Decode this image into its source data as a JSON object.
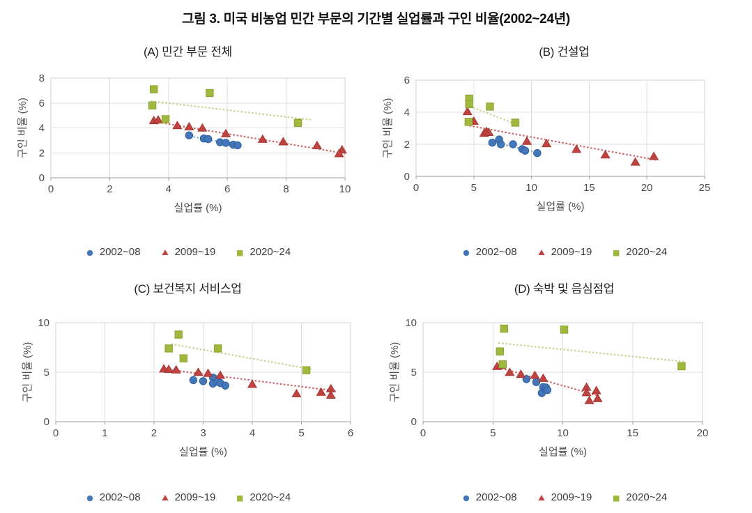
{
  "title": "그림 3. 미국 비농업 민간 부문의 기간별 실업률과 구인 비율(2002~24년)",
  "legend": {
    "items": [
      {
        "label": "2002~08",
        "shape": "circle",
        "color": "#4377b9"
      },
      {
        "label": "2009~19",
        "shape": "triangle",
        "color": "#bf4340"
      },
      {
        "label": "2020~24",
        "shape": "square",
        "color": "#9fb83e"
      }
    ]
  },
  "chart_data": [
    {
      "type": "scatter",
      "panel": "A",
      "subtitle": "(A) 민간 부문 전체",
      "xlabel": "실업률 (%)",
      "ylabel": "구인 비율 (%)",
      "xlim": [
        0,
        10
      ],
      "ylim": [
        0,
        8
      ],
      "xticks": [
        0,
        2,
        4,
        6,
        8,
        10
      ],
      "yticks": [
        0,
        2,
        4,
        6,
        8
      ],
      "grid": true,
      "series": [
        {
          "name": "2002~08",
          "shape": "circle",
          "color": "#4377b9",
          "edge": "#2f5f9e",
          "trend_color": "#85a9d6",
          "points": [
            [
              4.7,
              3.4
            ],
            [
              5.2,
              3.15
            ],
            [
              5.35,
              3.1
            ],
            [
              5.75,
              2.85
            ],
            [
              5.95,
              2.8
            ],
            [
              6.2,
              2.65
            ],
            [
              6.35,
              2.6
            ]
          ],
          "trend": [
            [
              4.6,
              3.4
            ],
            [
              6.55,
              2.5
            ]
          ]
        },
        {
          "name": "2009~19",
          "shape": "triangle",
          "color": "#bf4340",
          "edge": "#a53732",
          "trend_color": "#d16060",
          "points": [
            [
              3.5,
              4.6
            ],
            [
              3.65,
              4.65
            ],
            [
              4.3,
              4.2
            ],
            [
              4.7,
              4.1
            ],
            [
              5.15,
              4.0
            ],
            [
              5.95,
              3.55
            ],
            [
              7.2,
              3.1
            ],
            [
              7.9,
              2.9
            ],
            [
              9.05,
              2.6
            ],
            [
              9.9,
              2.25
            ],
            [
              9.8,
              1.95
            ]
          ],
          "trend": [
            [
              3.4,
              4.55
            ],
            [
              10.0,
              1.95
            ]
          ]
        },
        {
          "name": "2020~24",
          "shape": "square",
          "color": "#9fb83e",
          "edge": "#8ba32e",
          "trend_color": "#c9d08f",
          "points": [
            [
              3.5,
              7.1
            ],
            [
              3.45,
              5.8
            ],
            [
              3.9,
              4.7
            ],
            [
              5.4,
              6.8
            ],
            [
              8.4,
              4.4
            ]
          ],
          "trend": [
            [
              3.4,
              6.15
            ],
            [
              8.85,
              4.65
            ]
          ]
        }
      ]
    },
    {
      "type": "scatter",
      "panel": "B",
      "subtitle": "(B) 건설업",
      "xlabel": "실업률 (%)",
      "ylabel": "구인 비율 (%)",
      "xlim": [
        0,
        25
      ],
      "ylim": [
        0,
        6
      ],
      "xticks": [
        0,
        5,
        10,
        15,
        20,
        25
      ],
      "yticks": [
        0,
        2,
        4,
        6
      ],
      "grid": true,
      "series": [
        {
          "name": "2002~08",
          "shape": "circle",
          "color": "#4377b9",
          "edge": "#2f5f9e",
          "trend_color": "#85a9d6",
          "points": [
            [
              6.6,
              2.1
            ],
            [
              7.2,
              2.3
            ],
            [
              7.35,
              2.0
            ],
            [
              8.4,
              2.0
            ],
            [
              9.2,
              1.7
            ],
            [
              9.45,
              1.6
            ],
            [
              10.5,
              1.45
            ]
          ],
          "trend": [
            [
              6.6,
              2.15
            ],
            [
              10.7,
              1.45
            ]
          ]
        },
        {
          "name": "2009~19",
          "shape": "triangle",
          "color": "#bf4340",
          "edge": "#a53732",
          "trend_color": "#d16060",
          "points": [
            [
              4.45,
              4.05
            ],
            [
              5.0,
              3.45
            ],
            [
              5.9,
              2.7
            ],
            [
              6.1,
              2.8
            ],
            [
              6.3,
              2.75
            ],
            [
              9.6,
              2.2
            ],
            [
              11.3,
              2.05
            ],
            [
              13.9,
              1.7
            ],
            [
              16.4,
              1.35
            ],
            [
              19.0,
              0.9
            ],
            [
              20.6,
              1.25
            ]
          ],
          "trend": [
            [
              4.3,
              3.2
            ],
            [
              21.0,
              1.0
            ]
          ]
        },
        {
          "name": "2020~24",
          "shape": "square",
          "color": "#9fb83e",
          "edge": "#8ba32e",
          "trend_color": "#c9d08f",
          "points": [
            [
              4.6,
              4.85
            ],
            [
              4.6,
              4.5
            ],
            [
              4.55,
              3.4
            ],
            [
              6.4,
              4.35
            ],
            [
              8.6,
              3.35
            ]
          ],
          "trend": [
            [
              4.35,
              4.45
            ],
            [
              8.85,
              3.2
            ]
          ]
        }
      ]
    },
    {
      "type": "scatter",
      "panel": "C",
      "subtitle": "(C) 보건복지 서비스업",
      "xlabel": "실업률 (%)",
      "ylabel": "구인 비율 (%)",
      "xlim": [
        0,
        6
      ],
      "ylim": [
        0,
        10
      ],
      "xticks": [
        0,
        1,
        2,
        3,
        4,
        5,
        6
      ],
      "yticks": [
        0,
        5,
        10
      ],
      "grid": true,
      "series": [
        {
          "name": "2002~08",
          "shape": "circle",
          "color": "#4377b9",
          "edge": "#2f5f9e",
          "trend_color": "#85a9d6",
          "points": [
            [
              2.8,
              4.2
            ],
            [
              3.0,
              4.1
            ],
            [
              3.2,
              4.45
            ],
            [
              3.2,
              3.85
            ],
            [
              3.3,
              4.05
            ],
            [
              3.35,
              3.9
            ],
            [
              3.45,
              3.65
            ]
          ],
          "trend": null
        },
        {
          "name": "2009~19",
          "shape": "triangle",
          "color": "#bf4340",
          "edge": "#a53732",
          "trend_color": "#d16060",
          "points": [
            [
              2.2,
              5.35
            ],
            [
              2.3,
              5.3
            ],
            [
              2.45,
              5.25
            ],
            [
              2.9,
              5.0
            ],
            [
              3.1,
              4.9
            ],
            [
              3.35,
              4.7
            ],
            [
              4.0,
              3.8
            ],
            [
              4.9,
              2.85
            ],
            [
              5.4,
              3.0
            ],
            [
              5.6,
              3.35
            ],
            [
              5.6,
              2.7
            ]
          ],
          "trend": [
            [
              2.15,
              5.35
            ],
            [
              5.7,
              3.1
            ]
          ]
        },
        {
          "name": "2020~24",
          "shape": "square",
          "color": "#9fb83e",
          "edge": "#8ba32e",
          "trend_color": "#c9d08f",
          "points": [
            [
              2.5,
              8.8
            ],
            [
              2.3,
              7.4
            ],
            [
              2.6,
              6.4
            ],
            [
              3.3,
              7.4
            ],
            [
              5.1,
              5.2
            ]
          ],
          "trend": [
            [
              2.35,
              7.85
            ],
            [
              5.2,
              5.3
            ]
          ]
        }
      ]
    },
    {
      "type": "scatter",
      "panel": "D",
      "subtitle": "(D) 숙박 및 음심점업",
      "xlabel": "실업률 (%)",
      "ylabel": "구인 비율 (%)",
      "xlim": [
        0,
        20
      ],
      "ylim": [
        0,
        10
      ],
      "xticks": [
        0,
        5,
        10,
        15,
        20
      ],
      "yticks": [
        0,
        5,
        10
      ],
      "grid": true,
      "series": [
        {
          "name": "2002~08",
          "shape": "circle",
          "color": "#4377b9",
          "edge": "#2f5f9e",
          "trend_color": "#85a9d6",
          "points": [
            [
              7.4,
              4.3
            ],
            [
              8.1,
              4.0
            ],
            [
              8.5,
              2.9
            ],
            [
              8.6,
              3.5
            ],
            [
              8.75,
              3.3
            ],
            [
              8.8,
              3.45
            ],
            [
              8.9,
              3.2
            ]
          ],
          "trend": null
        },
        {
          "name": "2009~19",
          "shape": "triangle",
          "color": "#bf4340",
          "edge": "#a53732",
          "trend_color": "#d16060",
          "points": [
            [
              5.3,
              5.6
            ],
            [
              5.6,
              5.7
            ],
            [
              6.2,
              5.0
            ],
            [
              7.0,
              4.8
            ],
            [
              8.0,
              4.7
            ],
            [
              8.6,
              4.4
            ],
            [
              11.7,
              3.5
            ],
            [
              11.7,
              2.95
            ],
            [
              11.9,
              2.15
            ],
            [
              12.4,
              3.15
            ],
            [
              12.5,
              2.35
            ]
          ],
          "trend": [
            [
              5.1,
              5.6
            ],
            [
              12.6,
              2.6
            ]
          ]
        },
        {
          "name": "2020~24",
          "shape": "square",
          "color": "#9fb83e",
          "edge": "#8ba32e",
          "trend_color": "#c9d08f",
          "points": [
            [
              5.8,
              9.4
            ],
            [
              10.1,
              9.3
            ],
            [
              5.5,
              7.1
            ],
            [
              5.7,
              5.8
            ],
            [
              18.5,
              5.6
            ]
          ],
          "trend": [
            [
              5.4,
              7.95
            ],
            [
              18.8,
              6.05
            ]
          ]
        }
      ]
    }
  ]
}
